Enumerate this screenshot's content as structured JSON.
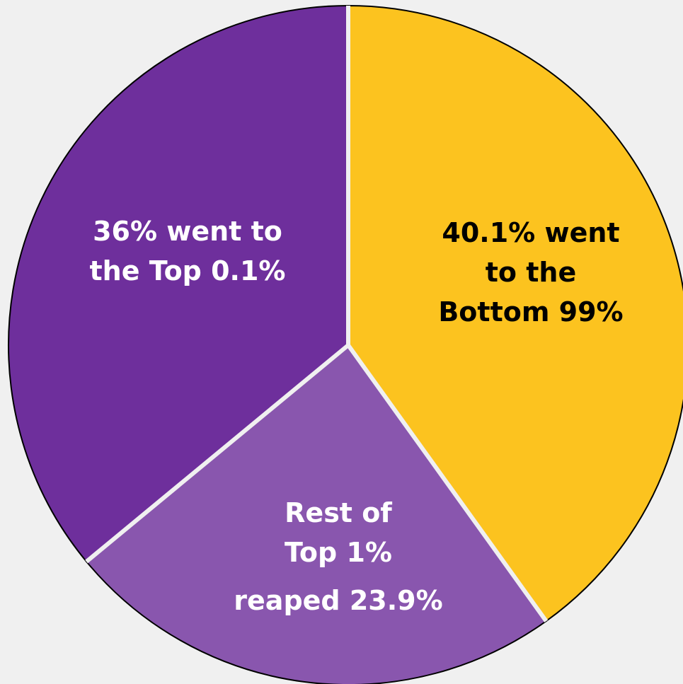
{
  "chart_data": {
    "type": "pie",
    "title": "",
    "slices": [
      {
        "key": "bottom-99",
        "value": 40.1,
        "color": "#fcc31f",
        "label_color": "#000000",
        "label_lines": [
          "40.1% went",
          "to the",
          "Bottom 99%"
        ]
      },
      {
        "key": "rest-of-top-1",
        "value": 23.9,
        "color": "#8956ae",
        "label_color": "#ffffff",
        "label_lines": [
          "Rest of",
          "Top 1%",
          "reaped 23.9%"
        ]
      },
      {
        "key": "top-0-1",
        "value": 36,
        "color": "#6e2f9c",
        "label_color": "#ffffff",
        "label_lines": [
          "36% went to",
          "the Top 0.1%"
        ]
      }
    ]
  }
}
